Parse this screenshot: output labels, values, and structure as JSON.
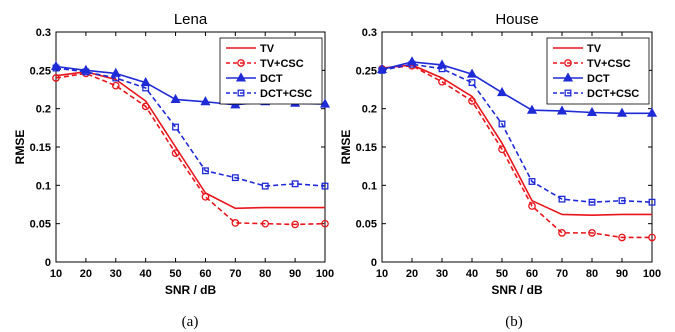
{
  "chart_data": [
    {
      "type": "line",
      "title": "Lena",
      "xlabel": "SNR / dB",
      "ylabel": "RMSE",
      "caption": "(a)",
      "x": [
        10,
        20,
        30,
        40,
        50,
        60,
        70,
        80,
        90,
        100
      ],
      "xticks": [
        "10",
        "20",
        "30",
        "40",
        "50",
        "60",
        "70",
        "80",
        "90",
        "100"
      ],
      "yticks": [
        "0",
        "0.05",
        "0.1",
        "0.15",
        "0.2",
        "0.25",
        "0.3"
      ],
      "xlim": [
        10,
        100
      ],
      "ylim": [
        0,
        0.3
      ],
      "grid": false,
      "legend": "top-right",
      "series": [
        {
          "name": "TV",
          "color": "#e8151b",
          "dash": "solid",
          "marker": "none",
          "values": [
            0.243,
            0.248,
            0.238,
            0.21,
            0.15,
            0.09,
            0.07,
            0.071,
            0.071,
            0.071
          ]
        },
        {
          "name": "TV+CSC",
          "color": "#e8151b",
          "dash": "dashed",
          "marker": "circle",
          "values": [
            0.24,
            0.246,
            0.23,
            0.203,
            0.142,
            0.085,
            0.051,
            0.05,
            0.049,
            0.05
          ]
        },
        {
          "name": "DCT",
          "color": "#1f2bd6",
          "dash": "solid",
          "marker": "triangle",
          "values": [
            0.255,
            0.25,
            0.246,
            0.234,
            0.212,
            0.209,
            0.205,
            0.209,
            0.207,
            0.206
          ]
        },
        {
          "name": "DCT+CSC",
          "color": "#1f2bd6",
          "dash": "dashed",
          "marker": "square",
          "values": [
            0.253,
            0.248,
            0.24,
            0.227,
            0.176,
            0.119,
            0.11,
            0.099,
            0.102,
            0.099
          ]
        }
      ]
    },
    {
      "type": "line",
      "title": "House",
      "xlabel": "SNR / dB",
      "ylabel": "RMSE",
      "caption": "(b)",
      "x": [
        10,
        20,
        30,
        40,
        50,
        60,
        70,
        80,
        90,
        100
      ],
      "xticks": [
        "10",
        "20",
        "30",
        "40",
        "50",
        "60",
        "70",
        "80",
        "90",
        "100"
      ],
      "yticks": [
        "0",
        "0.05",
        "0.1",
        "0.15",
        "0.2",
        "0.25",
        "0.3"
      ],
      "xlim": [
        10,
        100
      ],
      "ylim": [
        0,
        0.3
      ],
      "grid": false,
      "legend": "top-right",
      "series": [
        {
          "name": "TV",
          "color": "#e8151b",
          "dash": "solid",
          "marker": "none",
          "values": [
            0.253,
            0.257,
            0.24,
            0.216,
            0.155,
            0.08,
            0.062,
            0.061,
            0.062,
            0.062
          ]
        },
        {
          "name": "TV+CSC",
          "color": "#e8151b",
          "dash": "dashed",
          "marker": "circle",
          "values": [
            0.252,
            0.256,
            0.235,
            0.21,
            0.147,
            0.073,
            0.038,
            0.038,
            0.032,
            0.032
          ]
        },
        {
          "name": "DCT",
          "color": "#1f2bd6",
          "dash": "solid",
          "marker": "triangle",
          "values": [
            0.251,
            0.261,
            0.257,
            0.245,
            0.221,
            0.198,
            0.197,
            0.195,
            0.194,
            0.194
          ]
        },
        {
          "name": "DCT+CSC",
          "color": "#1f2bd6",
          "dash": "dashed",
          "marker": "square",
          "values": [
            0.25,
            0.258,
            0.252,
            0.234,
            0.18,
            0.105,
            0.082,
            0.078,
            0.08,
            0.078
          ]
        }
      ]
    }
  ]
}
